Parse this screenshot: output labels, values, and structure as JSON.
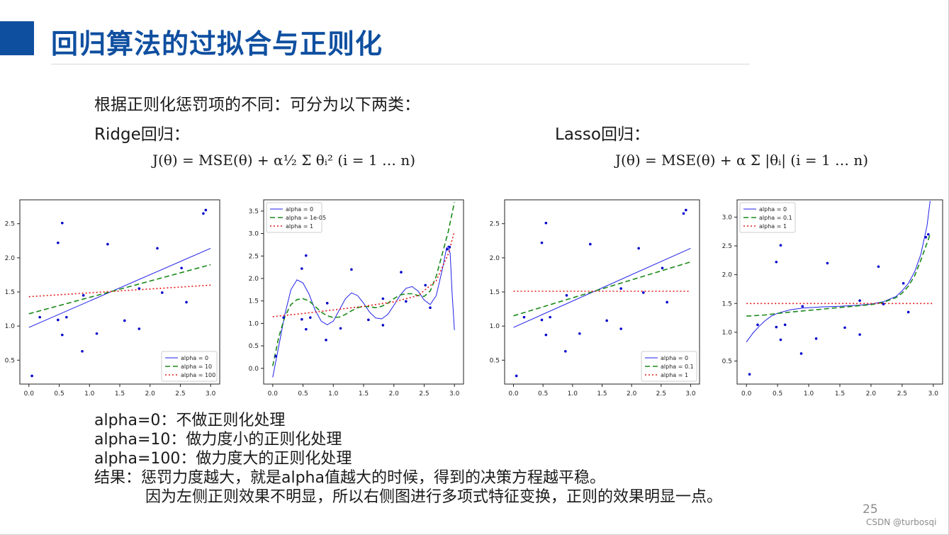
{
  "slide": {
    "title": "回归算法的过拟合与正则化",
    "intro": "根据正则化惩罚项的不同：可分为以下两类：",
    "ridge_heading": "Ridge回归：",
    "lasso_heading": "Lasso回归：",
    "ridge_formula": "J(θ) = MSE(θ) + α½ Σ θᵢ²  (i = 1 … n)",
    "lasso_formula": "J(θ) = MSE(θ) + α Σ |θᵢ|  (i = 1 … n)",
    "notes": [
      "alpha=0：不做正则化处理",
      "alpha=10：做力度小的正则化处理",
      "alpha=100：做力度大的正则化处理",
      "结果：惩罚力度越大，就是alpha值越大的时候，得到的决策方程越平稳。",
      "因为左侧正则效果不明显，所以右侧图进行多项式特征变换，正则的效果明显一点。"
    ],
    "page_number": "25",
    "watermark": "CSDN @turbosqi"
  },
  "colors": {
    "title_blue": "#0f4fa0",
    "series_blue": "#1f1fe8",
    "series_green": "#1a8a1a",
    "series_red": "#e31a1a",
    "points": "#0000cc"
  },
  "chart_data": [
    {
      "type": "line",
      "title": "",
      "xlim": [
        -0.15,
        3.15
      ],
      "ylim": [
        0.15,
        2.85
      ],
      "xticks": [
        "0.0",
        "0.5",
        "1.0",
        "1.5",
        "2.0",
        "2.5",
        "3.0"
      ],
      "yticks": [
        "0.5",
        "1.0",
        "1.5",
        "2.0",
        "2.5"
      ],
      "legend_position": "bottom-right",
      "scatter": [
        [
          0.05,
          0.27
        ],
        [
          0.18,
          1.13
        ],
        [
          0.48,
          2.22
        ],
        [
          0.48,
          1.09
        ],
        [
          0.55,
          2.51
        ],
        [
          0.55,
          0.87
        ],
        [
          0.62,
          1.13
        ],
        [
          0.88,
          0.63
        ],
        [
          0.9,
          1.45
        ],
        [
          1.12,
          0.89
        ],
        [
          1.3,
          2.2
        ],
        [
          1.58,
          1.08
        ],
        [
          1.82,
          0.96
        ],
        [
          1.82,
          1.55
        ],
        [
          2.12,
          2.14
        ],
        [
          2.2,
          1.49
        ],
        [
          2.52,
          1.85
        ],
        [
          2.6,
          1.35
        ],
        [
          2.88,
          2.65
        ],
        [
          2.92,
          2.7
        ]
      ],
      "series": [
        {
          "name": "alpha = 0",
          "style": "solid",
          "points": [
            [
              0,
              0.98
            ],
            [
              3,
              2.14
            ]
          ]
        },
        {
          "name": "alpha = 10",
          "style": "dashed",
          "points": [
            [
              0,
              1.18
            ],
            [
              3,
              1.9
            ]
          ]
        },
        {
          "name": "alpha = 100",
          "style": "dotted",
          "points": [
            [
              0,
              1.43
            ],
            [
              3,
              1.6
            ]
          ]
        }
      ]
    },
    {
      "type": "line",
      "title": "",
      "xlim": [
        -0.15,
        3.15
      ],
      "ylim": [
        -0.35,
        3.75
      ],
      "xticks": [
        "0.0",
        "0.5",
        "1.0",
        "1.5",
        "2.0",
        "2.5",
        "3.0"
      ],
      "yticks": [
        "0.0",
        "0.5",
        "1.0",
        "1.5",
        "2.0",
        "2.5",
        "3.0",
        "3.5"
      ],
      "legend_position": "top-left",
      "scatter": [
        [
          0.05,
          0.27
        ],
        [
          0.18,
          1.13
        ],
        [
          0.48,
          2.22
        ],
        [
          0.48,
          1.09
        ],
        [
          0.55,
          2.51
        ],
        [
          0.55,
          0.87
        ],
        [
          0.62,
          1.13
        ],
        [
          0.88,
          0.63
        ],
        [
          0.9,
          1.45
        ],
        [
          1.12,
          0.89
        ],
        [
          1.3,
          2.2
        ],
        [
          1.58,
          1.08
        ],
        [
          1.82,
          0.96
        ],
        [
          1.82,
          1.55
        ],
        [
          2.12,
          2.14
        ],
        [
          2.2,
          1.49
        ],
        [
          2.52,
          1.85
        ],
        [
          2.6,
          1.35
        ],
        [
          2.88,
          2.65
        ],
        [
          2.92,
          2.7
        ]
      ],
      "series": [
        {
          "name": "alpha = 0",
          "style": "solid",
          "points": [
            [
              0,
              -0.2
            ],
            [
              0.1,
              0.5
            ],
            [
              0.2,
              1.2
            ],
            [
              0.3,
              1.75
            ],
            [
              0.4,
              1.97
            ],
            [
              0.5,
              1.9
            ],
            [
              0.6,
              1.65
            ],
            [
              0.7,
              1.3
            ],
            [
              0.8,
              1.05
            ],
            [
              0.9,
              0.97
            ],
            [
              1.0,
              1.05
            ],
            [
              1.1,
              1.3
            ],
            [
              1.2,
              1.55
            ],
            [
              1.3,
              1.68
            ],
            [
              1.4,
              1.62
            ],
            [
              1.5,
              1.45
            ],
            [
              1.6,
              1.25
            ],
            [
              1.7,
              1.12
            ],
            [
              1.8,
              1.1
            ],
            [
              1.9,
              1.2
            ],
            [
              2.0,
              1.4
            ],
            [
              2.1,
              1.62
            ],
            [
              2.2,
              1.78
            ],
            [
              2.3,
              1.82
            ],
            [
              2.4,
              1.72
            ],
            [
              2.5,
              1.52
            ],
            [
              2.6,
              1.42
            ],
            [
              2.7,
              1.62
            ],
            [
              2.8,
              2.2
            ],
            [
              2.87,
              2.68
            ],
            [
              2.9,
              2.72
            ],
            [
              2.93,
              2.55
            ],
            [
              2.96,
              1.7
            ],
            [
              3.0,
              0.85
            ]
          ]
        },
        {
          "name": "alpha = 1e-05",
          "style": "dashed",
          "points": [
            [
              0,
              0.05
            ],
            [
              0.1,
              0.7
            ],
            [
              0.2,
              1.15
            ],
            [
              0.3,
              1.42
            ],
            [
              0.4,
              1.53
            ],
            [
              0.5,
              1.55
            ],
            [
              0.6,
              1.5
            ],
            [
              0.7,
              1.38
            ],
            [
              0.8,
              1.25
            ],
            [
              0.9,
              1.17
            ],
            [
              1.0,
              1.13
            ],
            [
              1.1,
              1.14
            ],
            [
              1.2,
              1.2
            ],
            [
              1.3,
              1.28
            ],
            [
              1.4,
              1.35
            ],
            [
              1.5,
              1.38
            ],
            [
              1.6,
              1.37
            ],
            [
              1.7,
              1.35
            ],
            [
              1.8,
              1.38
            ],
            [
              1.9,
              1.45
            ],
            [
              2.0,
              1.55
            ],
            [
              2.1,
              1.63
            ],
            [
              2.2,
              1.66
            ],
            [
              2.3,
              1.66
            ],
            [
              2.4,
              1.62
            ],
            [
              2.5,
              1.6
            ],
            [
              2.6,
              1.72
            ],
            [
              2.7,
              2.05
            ],
            [
              2.8,
              2.55
            ],
            [
              2.9,
              3.05
            ],
            [
              3.0,
              3.7
            ]
          ]
        },
        {
          "name": "alpha = 1",
          "style": "dotted",
          "points": [
            [
              0,
              1.15
            ],
            [
              0.5,
              1.22
            ],
            [
              1.0,
              1.3
            ],
            [
              1.5,
              1.38
            ],
            [
              2.0,
              1.48
            ],
            [
              2.4,
              1.62
            ],
            [
              2.7,
              1.95
            ],
            [
              2.9,
              2.55
            ],
            [
              3.0,
              3.05
            ]
          ]
        }
      ]
    },
    {
      "type": "line",
      "title": "",
      "xlim": [
        -0.15,
        3.15
      ],
      "ylim": [
        0.15,
        2.85
      ],
      "xticks": [
        "0.0",
        "0.5",
        "1.0",
        "1.5",
        "2.0",
        "2.5",
        "3.0"
      ],
      "yticks": [
        "0.5",
        "1.0",
        "1.5",
        "2.0",
        "2.5"
      ],
      "legend_position": "bottom-right",
      "scatter": [
        [
          0.05,
          0.27
        ],
        [
          0.18,
          1.13
        ],
        [
          0.48,
          2.22
        ],
        [
          0.48,
          1.09
        ],
        [
          0.55,
          2.51
        ],
        [
          0.55,
          0.87
        ],
        [
          0.62,
          1.13
        ],
        [
          0.88,
          0.63
        ],
        [
          0.9,
          1.45
        ],
        [
          1.12,
          0.89
        ],
        [
          1.3,
          2.2
        ],
        [
          1.58,
          1.08
        ],
        [
          1.82,
          0.96
        ],
        [
          1.82,
          1.55
        ],
        [
          2.12,
          2.14
        ],
        [
          2.2,
          1.49
        ],
        [
          2.52,
          1.85
        ],
        [
          2.6,
          1.35
        ],
        [
          2.88,
          2.65
        ],
        [
          2.92,
          2.7
        ]
      ],
      "series": [
        {
          "name": "alpha = 0",
          "style": "solid",
          "points": [
            [
              0,
              0.98
            ],
            [
              3,
              2.14
            ]
          ]
        },
        {
          "name": "alpha = 0.1",
          "style": "dashed",
          "points": [
            [
              0,
              1.15
            ],
            [
              3,
              1.94
            ]
          ]
        },
        {
          "name": "alpha = 1",
          "style": "dotted",
          "points": [
            [
              0,
              1.51
            ],
            [
              3,
              1.51
            ]
          ]
        }
      ]
    },
    {
      "type": "line",
      "title": "",
      "xlim": [
        -0.15,
        3.15
      ],
      "ylim": [
        0.1,
        3.3
      ],
      "xticks": [
        "0.0",
        "0.5",
        "1.0",
        "1.5",
        "2.0",
        "2.5",
        "3.0"
      ],
      "yticks": [
        "0.5",
        "1.0",
        "1.5",
        "2.0",
        "2.5",
        "3.0"
      ],
      "legend_position": "top-left",
      "scatter": [
        [
          0.05,
          0.27
        ],
        [
          0.18,
          1.13
        ],
        [
          0.48,
          2.22
        ],
        [
          0.48,
          1.09
        ],
        [
          0.55,
          2.51
        ],
        [
          0.55,
          0.87
        ],
        [
          0.62,
          1.13
        ],
        [
          0.88,
          0.63
        ],
        [
          0.9,
          1.45
        ],
        [
          1.12,
          0.89
        ],
        [
          1.3,
          2.2
        ],
        [
          1.58,
          1.08
        ],
        [
          1.82,
          0.96
        ],
        [
          1.82,
          1.55
        ],
        [
          2.12,
          2.14
        ],
        [
          2.2,
          1.49
        ],
        [
          2.52,
          1.85
        ],
        [
          2.6,
          1.35
        ],
        [
          2.88,
          2.65
        ],
        [
          2.92,
          2.7
        ]
      ],
      "series": [
        {
          "name": "alpha = 0",
          "style": "solid",
          "points": [
            [
              0,
              0.83
            ],
            [
              0.1,
              0.98
            ],
            [
              0.2,
              1.1
            ],
            [
              0.3,
              1.2
            ],
            [
              0.4,
              1.28
            ],
            [
              0.5,
              1.33
            ],
            [
              0.7,
              1.39
            ],
            [
              0.9,
              1.42
            ],
            [
              1.2,
              1.44
            ],
            [
              1.5,
              1.45
            ],
            [
              1.8,
              1.47
            ],
            [
              2.0,
              1.49
            ],
            [
              2.2,
              1.53
            ],
            [
              2.4,
              1.62
            ],
            [
              2.5,
              1.72
            ],
            [
              2.6,
              1.85
            ],
            [
              2.7,
              2.05
            ],
            [
              2.8,
              2.35
            ],
            [
              2.9,
              2.85
            ],
            [
              2.95,
              3.28
            ]
          ]
        },
        {
          "name": "alpha = 0.1",
          "style": "dashed",
          "points": [
            [
              0,
              1.28
            ],
            [
              0.3,
              1.3
            ],
            [
              0.6,
              1.34
            ],
            [
              0.9,
              1.37
            ],
            [
              1.2,
              1.4
            ],
            [
              1.5,
              1.43
            ],
            [
              1.8,
              1.46
            ],
            [
              2.0,
              1.48
            ],
            [
              2.2,
              1.52
            ],
            [
              2.4,
              1.6
            ],
            [
              2.5,
              1.68
            ],
            [
              2.6,
              1.8
            ],
            [
              2.7,
              1.98
            ],
            [
              2.8,
              2.25
            ],
            [
              2.9,
              2.55
            ],
            [
              2.95,
              2.7
            ]
          ]
        },
        {
          "name": "alpha = 1",
          "style": "dotted",
          "points": [
            [
              0,
              1.5
            ],
            [
              3,
              1.5
            ]
          ]
        }
      ]
    }
  ]
}
